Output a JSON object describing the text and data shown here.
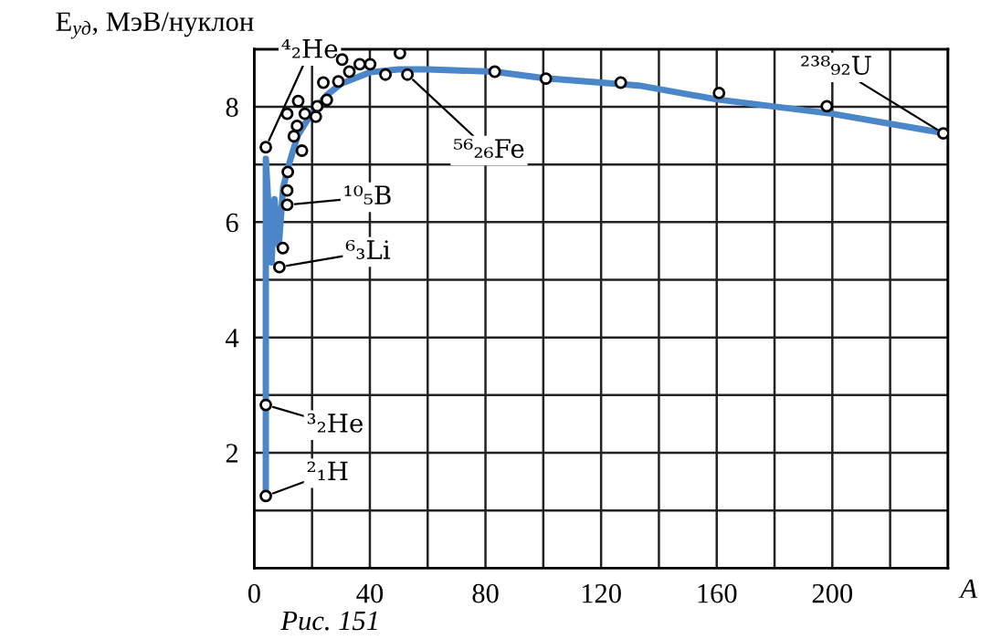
{
  "chart_data": {
    "type": "scatter",
    "ylabel": "E$_{уд}$, МэВ/нуклон",
    "xlabel": "A",
    "xlim": [
      0,
      240
    ],
    "ylim": [
      0,
      9
    ],
    "xticks": [
      0,
      {
        "value": 20,
        "label": null
      },
      40,
      {
        "value": 60,
        "label": null
      },
      80,
      {
        "value": 100,
        "label": null
      },
      120,
      {
        "value": 140,
        "label": null
      },
      160,
      {
        "value": 180,
        "label": null
      },
      200,
      {
        "value": 220,
        "label": null
      },
      {
        "value": 240,
        "label": null
      }
    ],
    "yticks": [
      {
        "value": 1,
        "label": null
      },
      2,
      {
        "value": 3,
        "label": null
      },
      4,
      {
        "value": 5,
        "label": null
      },
      6,
      {
        "value": 7,
        "label": null
      },
      8,
      {
        "value": 9,
        "label": null
      }
    ],
    "grid": true,
    "series": [
      {
        "type": "line",
        "color": "#4a86c8",
        "marker": "none",
        "x": [
          4,
          4,
          6,
          7,
          8.5,
          10,
          12,
          15,
          20,
          25,
          30,
          40,
          50,
          60,
          83,
          100,
          133,
          160,
          200,
          238
        ],
        "values": [
          1.25,
          7.1,
          5.3,
          6.4,
          5.6,
          6.6,
          7.0,
          7.5,
          7.9,
          8.2,
          8.4,
          8.6,
          8.65,
          8.65,
          8.61,
          8.5,
          8.37,
          8.13,
          7.88,
          7.55
        ]
      },
      {
        "color": "#000000",
        "marker": "circle",
        "x": [
          4,
          4,
          4,
          8.7,
          9.9,
          11.4,
          11.4,
          11.6,
          11.4,
          13.7,
          14.8,
          15.2,
          16.5,
          17.5,
          21.3,
          21.8,
          25.1,
          23.9,
          29.1,
          30.4,
          32.9,
          36.5,
          40.1,
          45.4,
          50.4,
          53,
          83.2,
          100.9,
          126.8,
          160.8,
          198.1,
          238.4
        ],
        "values": [
          1.25,
          2.83,
          7.3,
          5.22,
          5.55,
          6.3,
          6.55,
          6.87,
          7.88,
          7.49,
          7.67,
          8.1,
          7.24,
          7.88,
          7.83,
          8.01,
          8.12,
          8.42,
          8.44,
          8.82,
          8.61,
          8.74,
          8.74,
          8.56,
          8.93,
          8.56,
          8.61,
          8.49,
          8.42,
          8.24,
          8.01,
          7.54
        ]
      }
    ],
    "annotations": [
      {
        "text": "⁴₂He",
        "x": 4,
        "y": 7.3
      },
      {
        "text": "¹⁰₅B",
        "x": 11.4,
        "y": 6.3
      },
      {
        "text": "⁶₃Li",
        "x": 8.7,
        "y": 5.22
      },
      {
        "text": "³₂He",
        "x": 4,
        "y": 2.83
      },
      {
        "text": "²₁H",
        "x": 4,
        "y": 1.25
      },
      {
        "text": "⁵⁶₂₆Fe",
        "x": 53,
        "y": 8.56
      },
      {
        "text": "²³⁸₉₂U",
        "x": 238.4,
        "y": 7.54
      },
      "Рис. 151"
    ]
  }
}
